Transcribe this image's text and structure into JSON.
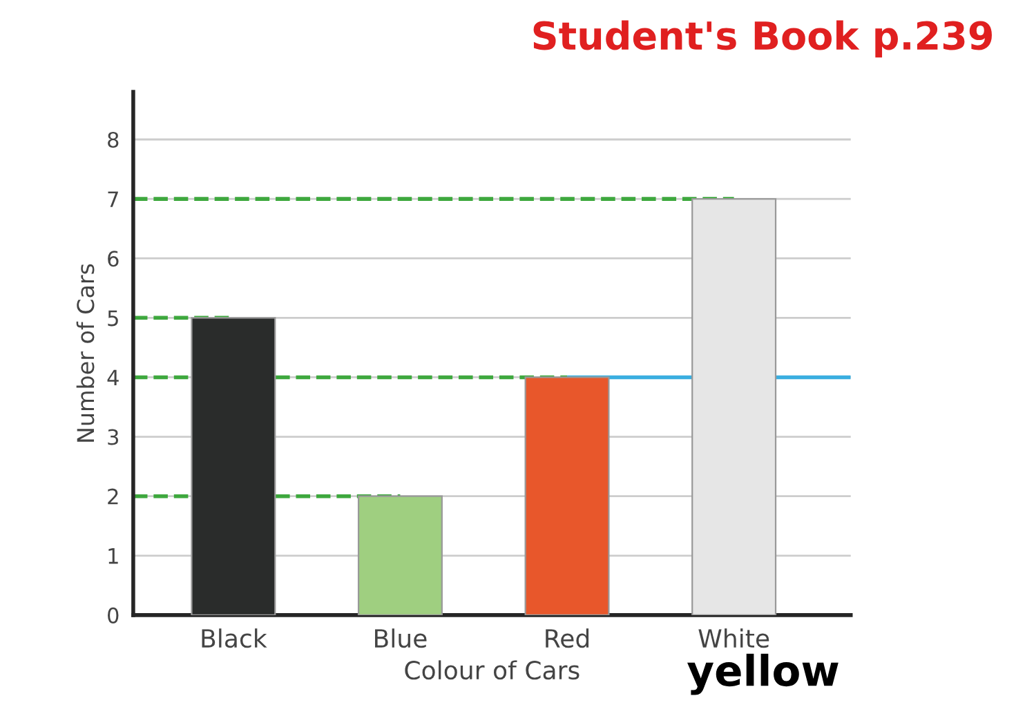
{
  "chart_data": {
    "type": "bar",
    "title": "Student's Book p.239",
    "xlabel": "Colour of Cars",
    "ylabel": "Number of Cars",
    "categories": [
      "Black",
      "Blue",
      "Red",
      "White"
    ],
    "values": [
      5,
      2,
      4,
      7
    ],
    "colors": [
      "#2a2c2b",
      "#9fcf80",
      "#e8572b",
      "#e6e6e6"
    ],
    "ylim": [
      0,
      8.8
    ],
    "yticks": [
      0,
      1,
      2,
      3,
      4,
      5,
      6,
      7,
      8
    ],
    "grid": "y",
    "ref_lines": [
      {
        "axis": "y",
        "value": 7,
        "color": "#3ea83e",
        "line_style": "dashed"
      },
      {
        "axis": "y",
        "value": 5,
        "color": "#3ea83e",
        "line_style": "dashed"
      },
      {
        "axis": "y",
        "value": 4,
        "color": "#3ea83e",
        "line_style": "dashed"
      },
      {
        "axis": "y",
        "value": 2,
        "color": "#3ea83e",
        "line_style": "dashed"
      },
      {
        "axis": "y",
        "value": 4,
        "color": "#3aaee0",
        "line_style": "solid"
      }
    ],
    "annotations": [
      "yellow"
    ]
  }
}
